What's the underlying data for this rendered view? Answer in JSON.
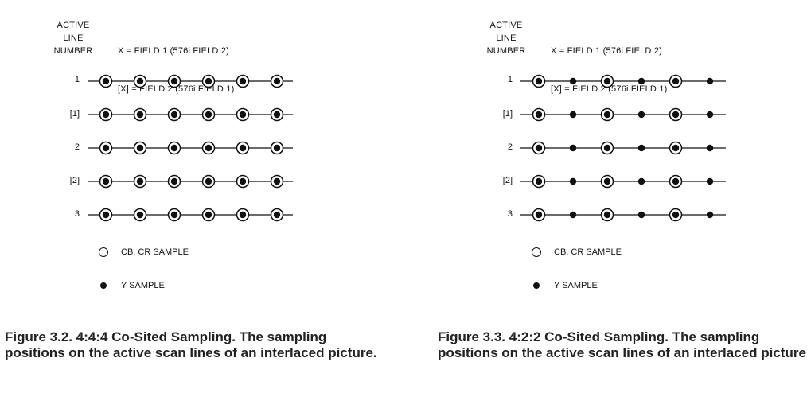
{
  "figures": [
    {
      "id": "fig-3-2",
      "header_lines": [
        "ACTIVE",
        "LINE",
        "NUMBER"
      ],
      "key_line_1": "X = FIELD 1 (576i FIELD 2)",
      "key_line_2": "[X] = FIELD 2 (576i FIELD 1)",
      "rows": [
        "1",
        "[1]",
        "2",
        "[2]",
        "3"
      ],
      "pattern": [
        "both",
        "both",
        "both",
        "both",
        "both",
        "both"
      ],
      "legend_cb_cr": "CB, CR SAMPLE",
      "legend_y": "Y SAMPLE",
      "caption": "Figure 3.2. 4:4:4 Co-Sited Sampling. The sampling positions on the active scan lines of an interlaced picture."
    },
    {
      "id": "fig-3-3",
      "header_lines": [
        "ACTIVE",
        "LINE",
        "NUMBER"
      ],
      "key_line_1": "X = FIELD 1 (576i FIELD 2)",
      "key_line_2": "[X] = FIELD 2 (576i FIELD 1)",
      "rows": [
        "1",
        "[1]",
        "2",
        "[2]",
        "3"
      ],
      "pattern": [
        "both",
        "y",
        "both",
        "y",
        "both",
        "y"
      ],
      "legend_cb_cr": "CB, CR SAMPLE",
      "legend_y": "Y SAMPLE",
      "caption": "Figure 3.3. 4:2:2 Co-Sited Sampling. The sampling positions on the active scan lines of an interlaced picture."
    }
  ]
}
